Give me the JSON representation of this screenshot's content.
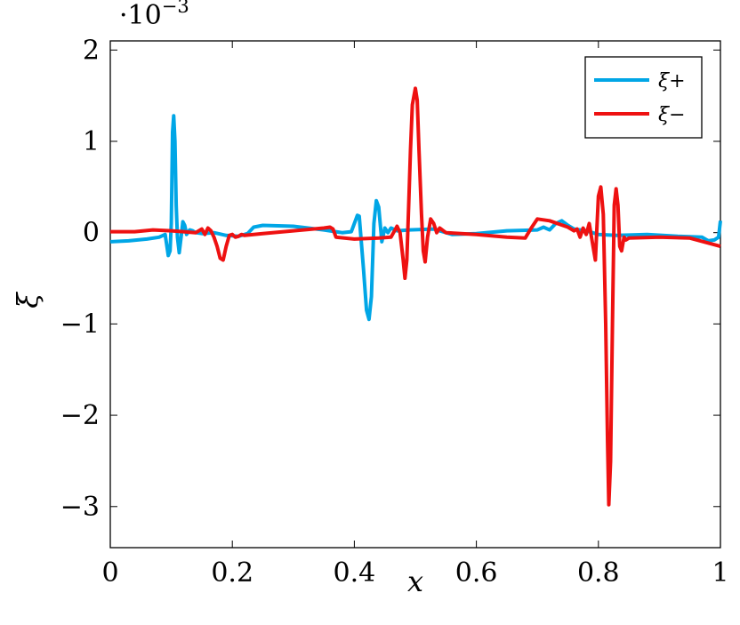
{
  "chart_data": {
    "type": "line",
    "xlabel": "x",
    "ylabel": "ξ",
    "y_scale_label": "·10",
    "y_scale_exponent": "−3",
    "xlim": [
      0,
      1
    ],
    "ylim": [
      -3.45,
      2.1
    ],
    "x_ticks": [
      0,
      0.2,
      0.4,
      0.6,
      0.8,
      1
    ],
    "x_tick_labels": [
      "0",
      "0.2",
      "0.4",
      "0.6",
      "0.8",
      "1"
    ],
    "y_ticks": [
      -3,
      -2,
      -1,
      0,
      1,
      2
    ],
    "y_tick_labels": [
      "−3",
      "−2",
      "−1",
      "0",
      "1",
      "2"
    ],
    "grid": false,
    "legend_position": "top-right",
    "series": [
      {
        "name": "ξ+",
        "color": "#00a6e6",
        "points": [
          [
            0,
            -0.1
          ],
          [
            0.03,
            -0.09
          ],
          [
            0.06,
            -0.07
          ],
          [
            0.08,
            -0.05
          ],
          [
            0.09,
            -0.02
          ],
          [
            0.095,
            -0.25
          ],
          [
            0.098,
            -0.2
          ],
          [
            0.1,
            0.1
          ],
          [
            0.102,
            1.1
          ],
          [
            0.104,
            1.28
          ],
          [
            0.106,
            1.0
          ],
          [
            0.108,
            0.3
          ],
          [
            0.11,
            -0.05
          ],
          [
            0.113,
            -0.22
          ],
          [
            0.116,
            -0.05
          ],
          [
            0.119,
            0.12
          ],
          [
            0.122,
            0.08
          ],
          [
            0.125,
            -0.02
          ],
          [
            0.13,
            0.03
          ],
          [
            0.135,
            0.02
          ],
          [
            0.14,
            0.0
          ],
          [
            0.15,
            -0.01
          ],
          [
            0.17,
            0.0
          ],
          [
            0.19,
            -0.03
          ],
          [
            0.21,
            -0.04
          ],
          [
            0.225,
            -0.01
          ],
          [
            0.235,
            0.06
          ],
          [
            0.25,
            0.08
          ],
          [
            0.3,
            0.07
          ],
          [
            0.35,
            0.03
          ],
          [
            0.38,
            0.0
          ],
          [
            0.395,
            0.01
          ],
          [
            0.405,
            0.19
          ],
          [
            0.408,
            0.18
          ],
          [
            0.415,
            -0.4
          ],
          [
            0.42,
            -0.85
          ],
          [
            0.424,
            -0.95
          ],
          [
            0.428,
            -0.7
          ],
          [
            0.432,
            0.1
          ],
          [
            0.436,
            0.35
          ],
          [
            0.44,
            0.28
          ],
          [
            0.445,
            -0.1
          ],
          [
            0.45,
            0.05
          ],
          [
            0.455,
            0.0
          ],
          [
            0.46,
            0.05
          ],
          [
            0.47,
            0.02
          ],
          [
            0.49,
            0.03
          ],
          [
            0.53,
            0.04
          ],
          [
            0.56,
            -0.02
          ],
          [
            0.6,
            -0.01
          ],
          [
            0.65,
            0.02
          ],
          [
            0.7,
            0.03
          ],
          [
            0.71,
            0.06
          ],
          [
            0.72,
            0.03
          ],
          [
            0.73,
            0.1
          ],
          [
            0.74,
            0.13
          ],
          [
            0.75,
            0.08
          ],
          [
            0.76,
            0.04
          ],
          [
            0.78,
            0.02
          ],
          [
            0.8,
            -0.02
          ],
          [
            0.83,
            -0.03
          ],
          [
            0.88,
            -0.02
          ],
          [
            0.93,
            -0.04
          ],
          [
            0.97,
            -0.05
          ],
          [
            0.98,
            -0.09
          ],
          [
            0.99,
            -0.08
          ],
          [
            0.997,
            -0.05
          ],
          [
            1.0,
            0.13
          ]
        ]
      },
      {
        "name": "ξ−",
        "color": "#ee1111",
        "points": [
          [
            0,
            0.01
          ],
          [
            0.04,
            0.01
          ],
          [
            0.07,
            0.03
          ],
          [
            0.1,
            0.02
          ],
          [
            0.12,
            0.01
          ],
          [
            0.14,
            0.0
          ],
          [
            0.15,
            0.04
          ],
          [
            0.155,
            -0.02
          ],
          [
            0.16,
            0.05
          ],
          [
            0.165,
            0.02
          ],
          [
            0.17,
            -0.05
          ],
          [
            0.175,
            -0.15
          ],
          [
            0.18,
            -0.28
          ],
          [
            0.185,
            -0.3
          ],
          [
            0.19,
            -0.15
          ],
          [
            0.195,
            -0.03
          ],
          [
            0.2,
            -0.02
          ],
          [
            0.205,
            -0.05
          ],
          [
            0.21,
            -0.04
          ],
          [
            0.215,
            -0.02
          ],
          [
            0.22,
            -0.03
          ],
          [
            0.25,
            -0.01
          ],
          [
            0.3,
            0.02
          ],
          [
            0.35,
            0.05
          ],
          [
            0.36,
            0.06
          ],
          [
            0.365,
            0.04
          ],
          [
            0.37,
            -0.05
          ],
          [
            0.4,
            -0.07
          ],
          [
            0.44,
            -0.06
          ],
          [
            0.46,
            -0.05
          ],
          [
            0.47,
            0.07
          ],
          [
            0.475,
            0.0
          ],
          [
            0.48,
            -0.3
          ],
          [
            0.483,
            -0.5
          ],
          [
            0.486,
            -0.3
          ],
          [
            0.489,
            0.3
          ],
          [
            0.492,
            0.9
          ],
          [
            0.495,
            1.4
          ],
          [
            0.5,
            1.58
          ],
          [
            0.503,
            1.45
          ],
          [
            0.506,
            0.9
          ],
          [
            0.51,
            0.2
          ],
          [
            0.513,
            -0.2
          ],
          [
            0.516,
            -0.32
          ],
          [
            0.52,
            -0.05
          ],
          [
            0.525,
            0.15
          ],
          [
            0.53,
            0.1
          ],
          [
            0.535,
            0.0
          ],
          [
            0.54,
            0.05
          ],
          [
            0.55,
            0.0
          ],
          [
            0.6,
            -0.02
          ],
          [
            0.65,
            -0.05
          ],
          [
            0.68,
            -0.06
          ],
          [
            0.69,
            0.05
          ],
          [
            0.7,
            0.15
          ],
          [
            0.72,
            0.13
          ],
          [
            0.75,
            0.06
          ],
          [
            0.76,
            0.02
          ],
          [
            0.765,
            0.04
          ],
          [
            0.77,
            -0.05
          ],
          [
            0.775,
            0.05
          ],
          [
            0.78,
            -0.02
          ],
          [
            0.785,
            0.1
          ],
          [
            0.79,
            -0.1
          ],
          [
            0.795,
            -0.3
          ],
          [
            0.8,
            0.4
          ],
          [
            0.804,
            0.5
          ],
          [
            0.808,
            0.2
          ],
          [
            0.812,
            -1.0
          ],
          [
            0.815,
            -2.3
          ],
          [
            0.817,
            -2.98
          ],
          [
            0.82,
            -2.5
          ],
          [
            0.823,
            -1.0
          ],
          [
            0.826,
            0.3
          ],
          [
            0.829,
            0.48
          ],
          [
            0.832,
            0.3
          ],
          [
            0.835,
            -0.15
          ],
          [
            0.838,
            -0.2
          ],
          [
            0.842,
            -0.05
          ],
          [
            0.845,
            -0.08
          ],
          [
            0.85,
            -0.06
          ],
          [
            0.9,
            -0.05
          ],
          [
            0.95,
            -0.06
          ],
          [
            1.0,
            -0.15
          ]
        ]
      }
    ]
  }
}
